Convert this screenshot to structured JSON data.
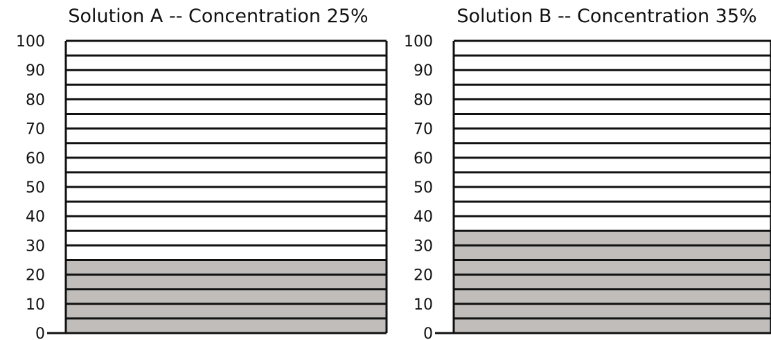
{
  "chart_data": [
    {
      "type": "bar",
      "title": "Solution A -- Concentration 25%",
      "values": [
        25
      ],
      "ylim": [
        0,
        100
      ],
      "yticks": [
        "0",
        "10",
        "20",
        "30",
        "40",
        "50",
        "60",
        "70",
        "80",
        "90",
        "100"
      ],
      "minor_gridlines": true,
      "fill_color": "#c0bdbb",
      "line_color": "#111111"
    },
    {
      "type": "bar",
      "title": "Solution B -- Concentration 35%",
      "values": [
        35
      ],
      "ylim": [
        0,
        100
      ],
      "yticks": [
        "0",
        "10",
        "20",
        "30",
        "40",
        "50",
        "60",
        "70",
        "80",
        "90",
        "100"
      ],
      "minor_gridlines": true,
      "fill_color": "#c0bdbb",
      "line_color": "#111111"
    }
  ]
}
